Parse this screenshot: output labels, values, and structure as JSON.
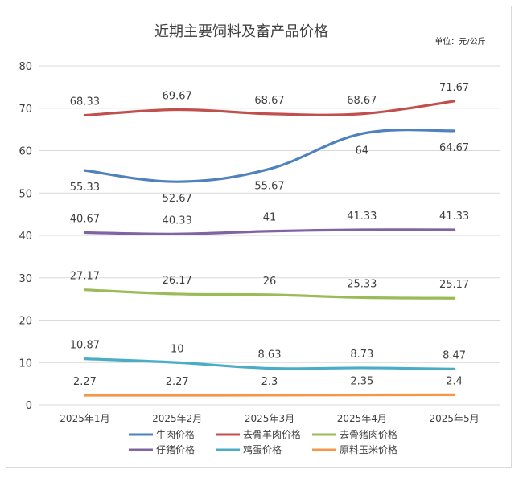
{
  "chart_data": {
    "type": "line",
    "title": "近期主要饲料及畜产品价格",
    "unit_label": "单位：元/公斤",
    "categories": [
      "2025年1月",
      "2025年2月",
      "2025年3月",
      "2025年4月",
      "2025年5月"
    ],
    "ylim": [
      0,
      80
    ],
    "yticks": [
      "0",
      "10",
      "20",
      "30",
      "40",
      "50",
      "60",
      "70",
      "80"
    ],
    "grid": true,
    "legend_position": "bottom",
    "series": [
      {
        "name": "牛肉价格",
        "color": "#4f81bd",
        "values": [
          55.33,
          52.67,
          55.67,
          64,
          64.67
        ],
        "labels": [
          "55.33",
          "52.67",
          "55.67",
          "64",
          "64.67"
        ],
        "label_pos": "below"
      },
      {
        "name": "去骨羊肉价格",
        "color": "#c0504d",
        "values": [
          68.33,
          69.67,
          68.67,
          68.67,
          71.67
        ],
        "labels": [
          "68.33",
          "69.67",
          "68.67",
          "68.67",
          "71.67"
        ],
        "label_pos": "above"
      },
      {
        "name": "去骨猪肉价格",
        "color": "#9bbb59",
        "values": [
          27.17,
          26.17,
          26,
          25.33,
          25.17
        ],
        "labels": [
          "27.17",
          "26.17",
          "26",
          "25.33",
          "25.17"
        ],
        "label_pos": "above"
      },
      {
        "name": "仔猪价格",
        "color": "#8064a2",
        "values": [
          40.67,
          40.33,
          41,
          41.33,
          41.33
        ],
        "labels": [
          "40.67",
          "40.33",
          "41",
          "41.33",
          "41.33"
        ],
        "label_pos": "above"
      },
      {
        "name": "鸡蛋价格",
        "color": "#4bacc6",
        "values": [
          10.87,
          10,
          8.63,
          8.73,
          8.47
        ],
        "labels": [
          "10.87",
          "10",
          "8.63",
          "8.73",
          "8.47"
        ],
        "label_pos": "above"
      },
      {
        "name": "原料玉米价格",
        "color": "#f79646",
        "values": [
          2.27,
          2.27,
          2.3,
          2.35,
          2.4
        ],
        "labels": [
          "2.27",
          "2.27",
          "2.3",
          "2.35",
          "2.4"
        ],
        "label_pos": "above"
      }
    ]
  }
}
